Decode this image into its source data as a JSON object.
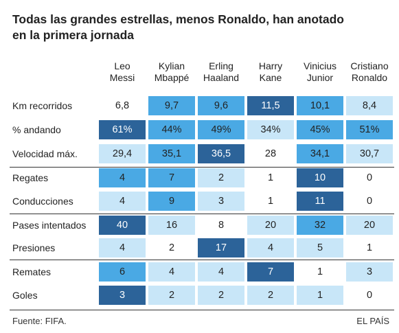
{
  "header": {
    "title": [
      "Todas las grandes estrellas, menos Ronaldo, han anotado",
      "en la primera jornada"
    ]
  },
  "table": {
    "columns": [
      [
        "Leo",
        "Messi"
      ],
      [
        "Kylian",
        "Mbappé"
      ],
      [
        "Erling",
        "Haaland"
      ],
      [
        "Harry",
        "Kane"
      ],
      [
        "Vinicius",
        "Junior"
      ],
      [
        "Cristiano",
        "Ronaldo"
      ]
    ],
    "rows": [
      {
        "label": "Km recorridos",
        "cells": [
          "6,8",
          "9,7",
          "9,6",
          "11,5",
          "10,1",
          "8,4"
        ],
        "colors": [
          "#ffffff",
          "#4aa9e4",
          "#4aa9e4",
          "#2c6399",
          "#4aa9e4",
          "#c8e6f8"
        ]
      },
      {
        "label": "% andando",
        "cells": [
          "61%",
          "44%",
          "49%",
          "34%",
          "45%",
          "51%"
        ],
        "colors": [
          "#2c6399",
          "#4aa9e4",
          "#4aa9e4",
          "#c8e6f8",
          "#4aa9e4",
          "#4aa9e4"
        ]
      },
      {
        "label": "Velocidad máx.",
        "cells": [
          "29,4",
          "35,1",
          "36,5",
          "28",
          "34,1",
          "30,7"
        ],
        "colors": [
          "#c8e6f8",
          "#4aa9e4",
          "#2c6399",
          "#ffffff",
          "#4aa9e4",
          "#c8e6f8"
        ]
      },
      {
        "label": "Regates",
        "cells": [
          "4",
          "7",
          "2",
          "1",
          "10",
          "0"
        ],
        "colors": [
          "#4aa9e4",
          "#4aa9e4",
          "#c8e6f8",
          "#ffffff",
          "#2c6399",
          "#ffffff"
        ]
      },
      {
        "label": "Conducciones",
        "cells": [
          "4",
          "9",
          "3",
          "1",
          "11",
          "0"
        ],
        "colors": [
          "#c8e6f8",
          "#4aa9e4",
          "#c8e6f8",
          "#ffffff",
          "#2c6399",
          "#ffffff"
        ]
      },
      {
        "label": "Pases intentados",
        "cells": [
          "40",
          "16",
          "8",
          "20",
          "32",
          "20"
        ],
        "colors": [
          "#2c6399",
          "#c8e6f8",
          "#ffffff",
          "#c8e6f8",
          "#4aa9e4",
          "#c8e6f8"
        ]
      },
      {
        "label": "Presiones",
        "cells": [
          "4",
          "2",
          "17",
          "4",
          "5",
          "1"
        ],
        "colors": [
          "#c8e6f8",
          "#ffffff",
          "#2c6399",
          "#c8e6f8",
          "#c8e6f8",
          "#ffffff"
        ]
      },
      {
        "label": "Remates",
        "cells": [
          "6",
          "4",
          "4",
          "7",
          "1",
          "3"
        ],
        "colors": [
          "#4aa9e4",
          "#c8e6f8",
          "#c8e6f8",
          "#2c6399",
          "#ffffff",
          "#c8e6f8"
        ]
      },
      {
        "label": "Goles",
        "cells": [
          "3",
          "2",
          "2",
          "2",
          "1",
          "0"
        ],
        "colors": [
          "#2c6399",
          "#c8e6f8",
          "#c8e6f8",
          "#c8e6f8",
          "#c8e6f8",
          "#ffffff"
        ]
      }
    ]
  },
  "footer": {
    "source": "Fuente: FIFA.",
    "brand": "EL PAÍS"
  }
}
